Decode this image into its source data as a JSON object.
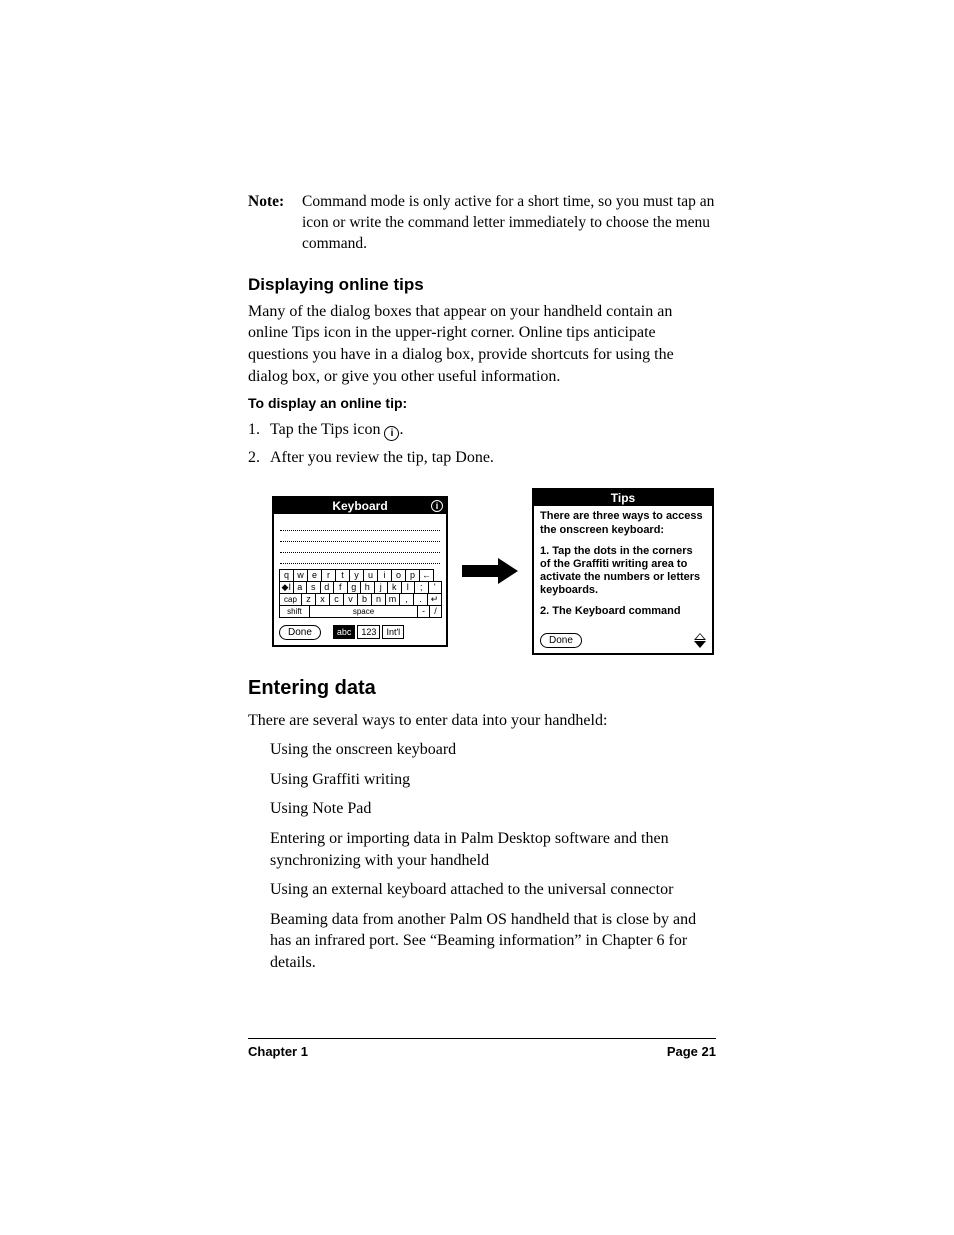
{
  "note": {
    "label": "Note:",
    "text": "Command mode is only active for a short time, so you must tap an icon or write the command letter immediately to choose the menu command."
  },
  "section1": {
    "heading": "Displaying online tips",
    "para": "Many of the dialog boxes that appear on your handheld contain an online Tips icon in the upper-right corner. Online tips anticipate questions you have in a dialog box, provide shortcuts for using the dialog box, or give you other useful information.",
    "sub": "To display an online tip:",
    "step1_pre": "Tap the Tips icon ",
    "step1_post": ".",
    "step2": "After you review the tip, tap Done."
  },
  "keyboard": {
    "title": "Keyboard",
    "info_glyph": "i",
    "rows": {
      "r1": [
        "q",
        "w",
        "e",
        "r",
        "t",
        "y",
        "u",
        "i",
        "o",
        "p",
        "←"
      ],
      "r2_lead": "◆I",
      "r2": [
        "a",
        "s",
        "d",
        "f",
        "g",
        "h",
        "j",
        "k",
        "l",
        ";",
        "'"
      ],
      "r3_lead": "cap",
      "r3": [
        "z",
        "x",
        "c",
        "v",
        "b",
        "n",
        "m",
        ",",
        ".",
        "↵"
      ],
      "r4_lead": "shift",
      "r4_space": "space",
      "r4_tail": [
        "-",
        "/"
      ]
    },
    "buttons": {
      "done": "Done",
      "abc": "abc",
      "n123": "123",
      "intl": "Int'l"
    }
  },
  "tips": {
    "title": "Tips",
    "p1": "There are three ways to access the onscreen keyboard:",
    "p2": "1. Tap the dots in the corners of the Graffiti writing area to activate the numbers or letters keyboards.",
    "p3": "2. The Keyboard command",
    "done": "Done"
  },
  "section2": {
    "heading": "Entering data",
    "intro": "There are several ways to enter data into your handheld:",
    "items": [
      "Using the onscreen keyboard",
      "Using Graffiti writing",
      "Using Note Pad",
      "Entering or importing data in Palm Desktop software and then synchronizing with your handheld",
      "Using an external keyboard attached to the universal connector",
      "Beaming data from another Palm OS handheld that is close by and has an infrared port. See “Beaming information” in Chapter 6 for details."
    ]
  },
  "footer": {
    "left": "Chapter 1",
    "right": "Page 21"
  },
  "tip_icon_glyph": "i"
}
